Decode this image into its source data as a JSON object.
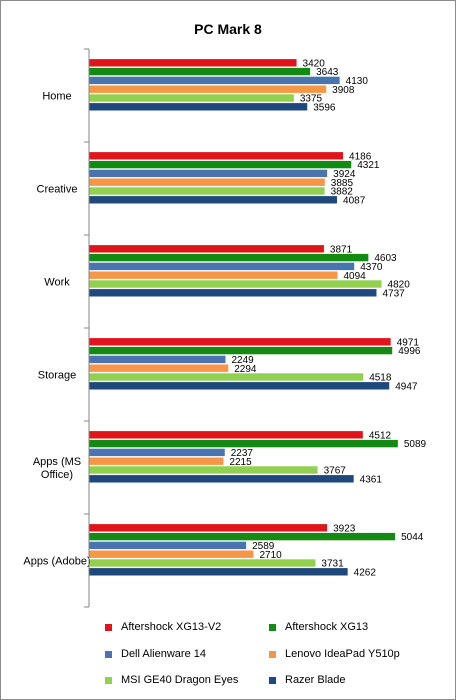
{
  "chart_data": {
    "type": "bar",
    "orientation": "horizontal",
    "title": "PC Mark 8",
    "xlabel": "",
    "ylabel": "",
    "grid": false,
    "legend_position": "bottom",
    "categories": [
      "Home",
      "Creative",
      "Work",
      "Storage",
      "Apps (MS Office)",
      "Apps (Adobe)"
    ],
    "category_lines": [
      [
        "Home"
      ],
      [
        "Creative"
      ],
      [
        "Work"
      ],
      [
        "Storage"
      ],
      [
        "Apps (MS",
        "Office)"
      ],
      [
        "Apps (Adobe)"
      ]
    ],
    "xlim": [
      0,
      5800
    ],
    "series": [
      {
        "name": "Aftershock XG13-V2",
        "color": "#e0151b",
        "values": [
          3420,
          4186,
          3871,
          4971,
          4512,
          3923
        ]
      },
      {
        "name": "Aftershock XG13",
        "color": "#138a13",
        "values": [
          3643,
          4321,
          4603,
          4996,
          5089,
          5044
        ]
      },
      {
        "name": "Dell Alienware 14",
        "color": "#4a74b0",
        "values": [
          4130,
          3924,
          4370,
          2249,
          2237,
          2589
        ]
      },
      {
        "name": "Lenovo IdeaPad Y510p",
        "color": "#f79646",
        "values": [
          3908,
          3885,
          4094,
          2294,
          2215,
          2710
        ]
      },
      {
        "name": "MSI GE40 Dragon Eyes",
        "color": "#92d050",
        "values": [
          3375,
          3882,
          4820,
          4518,
          3767,
          3731
        ]
      },
      {
        "name": "Razer Blade",
        "color": "#1f497d",
        "values": [
          3596,
          4087,
          4737,
          4947,
          4361,
          4262
        ]
      }
    ]
  }
}
